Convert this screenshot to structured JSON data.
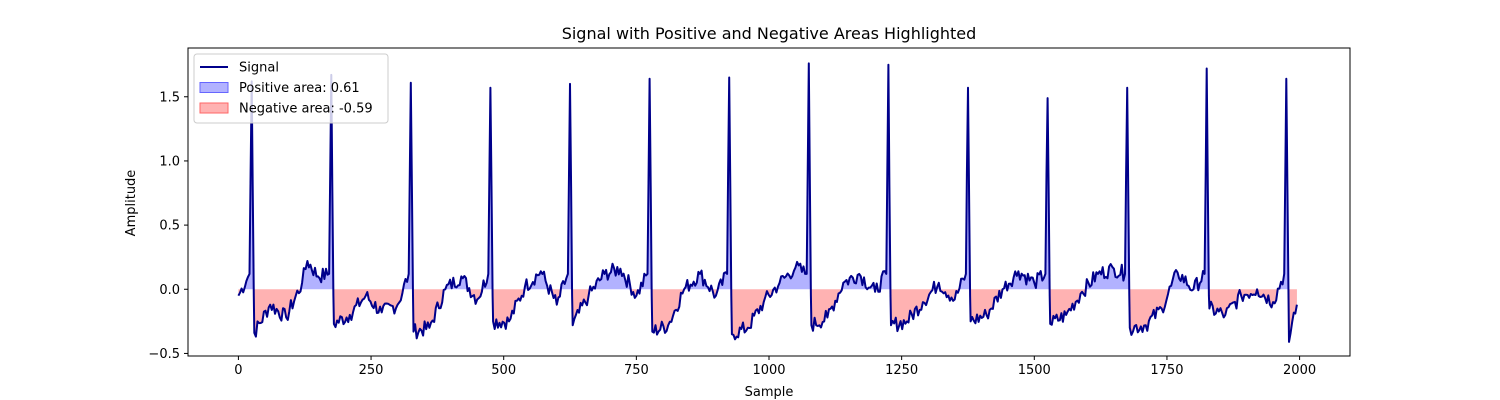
{
  "chart_data": {
    "type": "line",
    "title": "Signal with Positive and Negative Areas Highlighted",
    "xlabel": "Sample",
    "ylabel": "Amplitude",
    "xlim": [
      -95,
      2095
    ],
    "ylim": [
      -0.52,
      1.88
    ],
    "xticks": [
      0,
      250,
      500,
      750,
      1000,
      1250,
      1500,
      1750,
      2000
    ],
    "yticks": [
      -0.5,
      0.0,
      0.5,
      1.0,
      1.5
    ],
    "xtick_labels": [
      "0",
      "250",
      "500",
      "750",
      "1000",
      "1250",
      "1500",
      "1750",
      "2000"
    ],
    "ytick_labels": [
      "−0.5",
      "0.0",
      "0.5",
      "1.0",
      "1.5"
    ],
    "series": [
      {
        "name": "Signal",
        "color": "#00008b",
        "peaks": [
          {
            "x": 25,
            "y": 1.62
          },
          {
            "x": 175,
            "y": 1.67
          },
          {
            "x": 325,
            "y": 1.61
          },
          {
            "x": 475,
            "y": 1.57
          },
          {
            "x": 625,
            "y": 1.6
          },
          {
            "x": 775,
            "y": 1.64
          },
          {
            "x": 925,
            "y": 1.65
          },
          {
            "x": 1075,
            "y": 1.76
          },
          {
            "x": 1225,
            "y": 1.75
          },
          {
            "x": 1375,
            "y": 1.57
          },
          {
            "x": 1525,
            "y": 1.49
          },
          {
            "x": 1675,
            "y": 1.57
          },
          {
            "x": 1825,
            "y": 1.72
          },
          {
            "x": 1975,
            "y": 1.64
          }
        ],
        "baseline_points": [
          [
            0,
            -0.05
          ],
          [
            30,
            -0.34
          ],
          [
            60,
            -0.12
          ],
          [
            90,
            -0.22
          ],
          [
            120,
            0.05
          ],
          [
            130,
            0.22
          ],
          [
            150,
            0.1
          ],
          [
            180,
            -0.27
          ],
          [
            210,
            -0.2
          ],
          [
            240,
            -0.05
          ],
          [
            270,
            -0.18
          ],
          [
            300,
            -0.12
          ],
          [
            330,
            -0.33
          ],
          [
            360,
            -0.3
          ],
          [
            390,
            0.0
          ],
          [
            420,
            0.1
          ],
          [
            450,
            -0.08
          ],
          [
            480,
            -0.25
          ],
          [
            510,
            -0.25
          ],
          [
            540,
            0.02
          ],
          [
            570,
            0.14
          ],
          [
            600,
            -0.12
          ],
          [
            630,
            -0.28
          ],
          [
            660,
            -0.05
          ],
          [
            690,
            0.12
          ],
          [
            720,
            0.16
          ],
          [
            750,
            -0.05
          ],
          [
            780,
            -0.33
          ],
          [
            810,
            -0.28
          ],
          [
            840,
            0.0
          ],
          [
            870,
            0.12
          ],
          [
            900,
            -0.05
          ],
          [
            930,
            -0.35
          ],
          [
            960,
            -0.3
          ],
          [
            990,
            -0.1
          ],
          [
            1020,
            0.05
          ],
          [
            1050,
            0.17
          ],
          [
            1080,
            -0.28
          ],
          [
            1110,
            -0.22
          ],
          [
            1140,
            0.05
          ],
          [
            1170,
            0.12
          ],
          [
            1200,
            -0.02
          ],
          [
            1230,
            -0.28
          ],
          [
            1260,
            -0.25
          ],
          [
            1290,
            -0.1
          ],
          [
            1320,
            0.05
          ],
          [
            1350,
            -0.08
          ],
          [
            1380,
            -0.25
          ],
          [
            1410,
            -0.2
          ],
          [
            1440,
            0.0
          ],
          [
            1470,
            0.14
          ],
          [
            1500,
            0.05
          ],
          [
            1530,
            -0.27
          ],
          [
            1560,
            -0.2
          ],
          [
            1590,
            -0.02
          ],
          [
            1620,
            0.12
          ],
          [
            1650,
            0.16
          ],
          [
            1680,
            -0.3
          ],
          [
            1710,
            -0.28
          ],
          [
            1740,
            -0.15
          ],
          [
            1770,
            0.13
          ],
          [
            1800,
            0.0
          ],
          [
            1830,
            -0.15
          ],
          [
            1860,
            -0.2
          ],
          [
            1890,
            -0.05
          ],
          [
            1920,
            0.0
          ],
          [
            1950,
            -0.1
          ],
          [
            1980,
            -0.41
          ],
          [
            1995,
            -0.12
          ]
        ]
      }
    ],
    "legend": [
      {
        "label": "Signal",
        "kind": "line",
        "color": "#00008b"
      },
      {
        "label": "Positive area: 0.61",
        "kind": "patch",
        "color": "#6666ff"
      },
      {
        "label": "Negative area: -0.59",
        "kind": "patch",
        "color": "#ff6666"
      }
    ],
    "legend_position": "upper left",
    "grid": false
  }
}
